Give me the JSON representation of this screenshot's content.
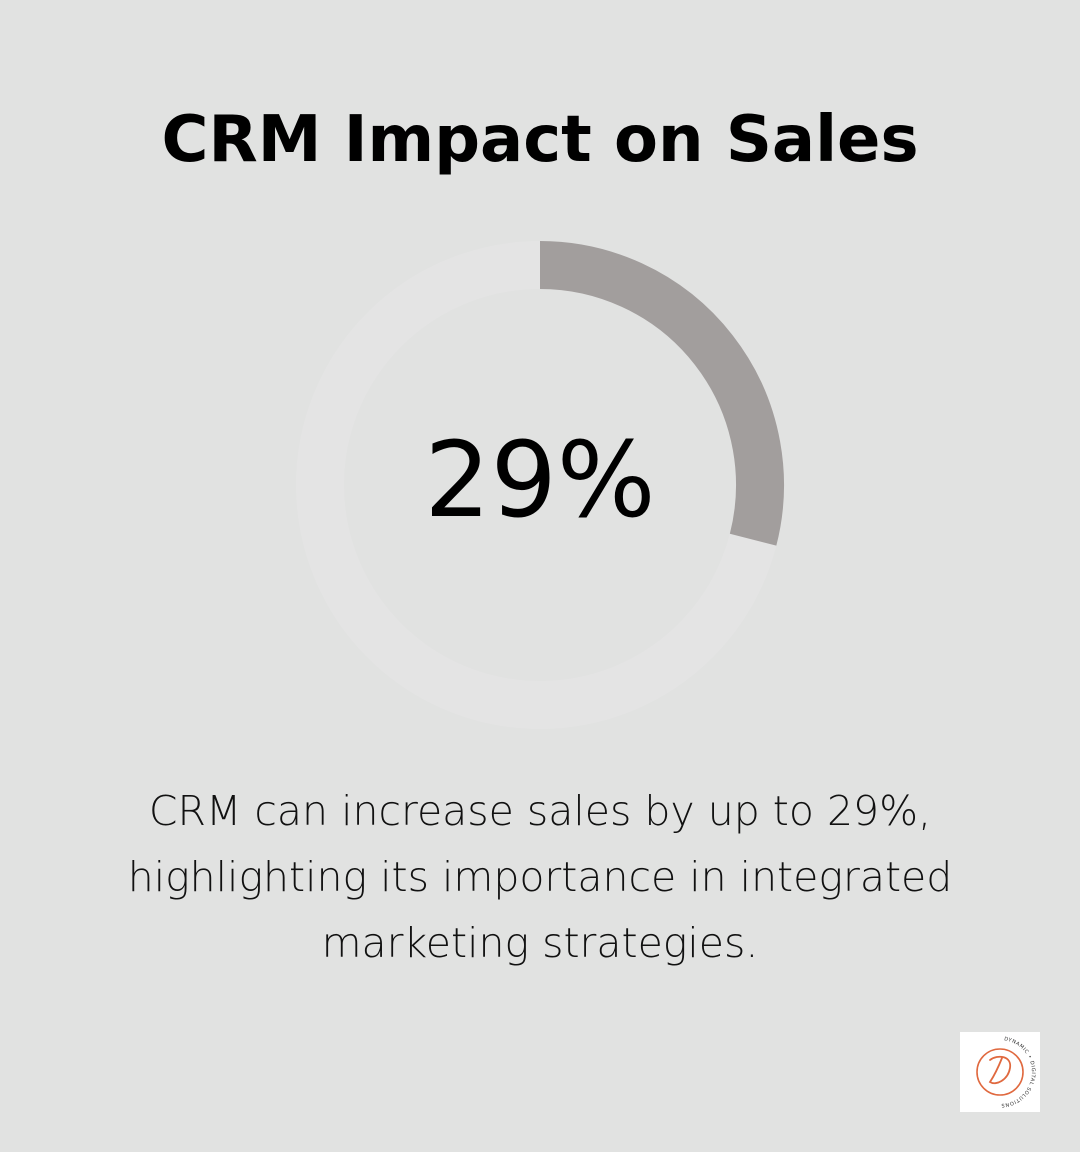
{
  "title": "CRM Impact on Sales",
  "chart_data": {
    "type": "donut",
    "value": 29,
    "max": 100,
    "label": "29%",
    "colors": {
      "filled": "#a29e9d",
      "track": "#e4e4e4",
      "background": "#e1e2e1"
    }
  },
  "caption": {
    "line1": "CRM can increase sales by up to 29%,",
    "line2": "highlighting its importance in integrated",
    "line3": "marketing strategies."
  },
  "logo": {
    "icon": "dynamic-digital-solutions-logo",
    "accent": "#e0693f",
    "text": "DYNAMIC • DIGITAL SOLUTIONS"
  }
}
